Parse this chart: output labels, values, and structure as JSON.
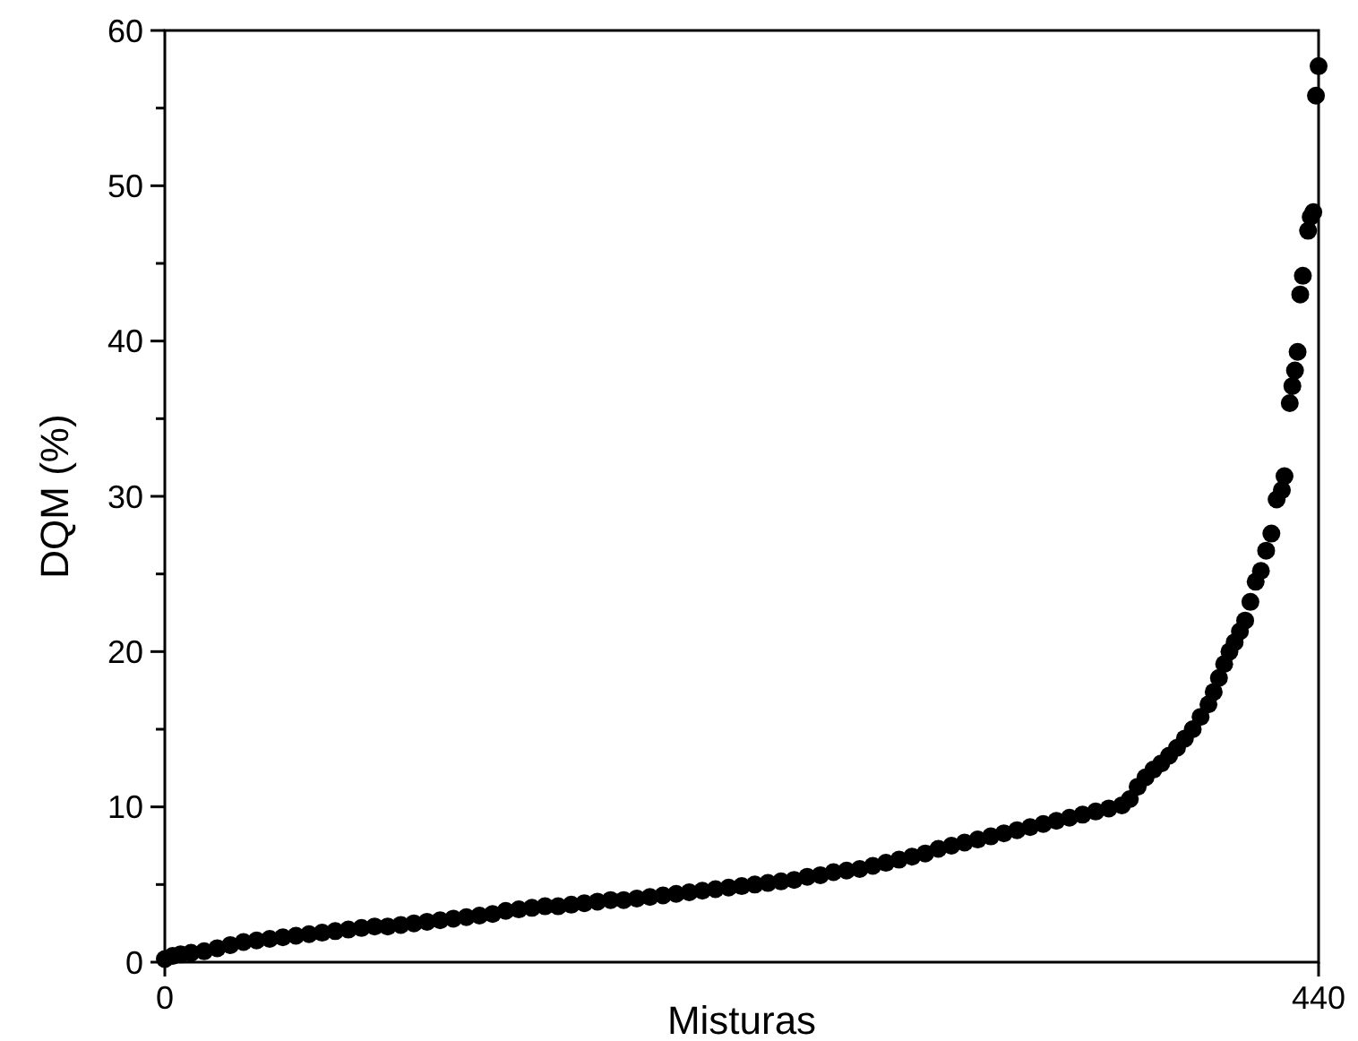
{
  "chart_data": {
    "type": "scatter",
    "xlabel": "Misturas",
    "ylabel": "DQM (%)",
    "marker": "circle",
    "grid": false,
    "xlim": [
      0,
      440
    ],
    "xticks": [
      0,
      440
    ],
    "ylim": [
      0,
      60
    ],
    "yticks": [
      0,
      {
        "value": 5,
        "label": null
      },
      10,
      {
        "value": 15,
        "label": null
      },
      20,
      {
        "value": 25,
        "label": null
      },
      30,
      {
        "value": 35,
        "label": null
      },
      40,
      {
        "value": 45,
        "label": null
      },
      50,
      {
        "value": 55,
        "label": null
      },
      60
    ],
    "series": [
      {
        "color": "#000000",
        "x": [
          0,
          3,
          6,
          10,
          15,
          20,
          25,
          30,
          35,
          40,
          45,
          50,
          55,
          60,
          65,
          70,
          75,
          80,
          85,
          90,
          95,
          100,
          105,
          110,
          115,
          120,
          125,
          130,
          135,
          140,
          145,
          150,
          155,
          160,
          165,
          170,
          175,
          180,
          185,
          190,
          195,
          200,
          205,
          210,
          215,
          220,
          225,
          230,
          235,
          240,
          245,
          250,
          255,
          260,
          265,
          270,
          275,
          280,
          285,
          290,
          295,
          300,
          305,
          310,
          315,
          320,
          325,
          330,
          335,
          340,
          345,
          350,
          355,
          360,
          365,
          368,
          371,
          374,
          377,
          380,
          383,
          386,
          389,
          392,
          395,
          398,
          400,
          402,
          404,
          406,
          408,
          410,
          412,
          414,
          416,
          418,
          420,
          422,
          424,
          426,
          427,
          429,
          430,
          431,
          432,
          433,
          434,
          436,
          437,
          438,
          439,
          440
        ],
        "values": [
          0.2,
          0.4,
          0.5,
          0.6,
          0.7,
          0.9,
          1.1,
          1.3,
          1.4,
          1.5,
          1.6,
          1.7,
          1.8,
          1.9,
          2.0,
          2.1,
          2.2,
          2.3,
          2.3,
          2.4,
          2.5,
          2.6,
          2.7,
          2.8,
          2.9,
          3.0,
          3.1,
          3.3,
          3.4,
          3.5,
          3.6,
          3.6,
          3.7,
          3.8,
          3.9,
          4.0,
          4.0,
          4.1,
          4.2,
          4.3,
          4.4,
          4.5,
          4.6,
          4.7,
          4.8,
          4.9,
          5.0,
          5.1,
          5.2,
          5.3,
          5.5,
          5.6,
          5.8,
          5.9,
          6.0,
          6.2,
          6.4,
          6.6,
          6.8,
          7.0,
          7.3,
          7.5,
          7.7,
          7.9,
          8.1,
          8.3,
          8.5,
          8.7,
          8.9,
          9.1,
          9.3,
          9.5,
          9.7,
          9.9,
          10.1,
          10.5,
          11.3,
          11.9,
          12.4,
          12.8,
          13.3,
          13.8,
          14.4,
          15.0,
          15.8,
          16.6,
          17.4,
          18.3,
          19.2,
          20.0,
          20.6,
          21.3,
          22.0,
          23.2,
          24.5,
          25.2,
          26.5,
          27.6,
          29.8,
          30.4,
          31.3,
          36.0,
          37.1,
          38.1,
          39.3,
          43.0,
          44.2,
          47.1,
          48.0,
          48.3,
          55.8,
          57.7
        ]
      }
    ]
  }
}
